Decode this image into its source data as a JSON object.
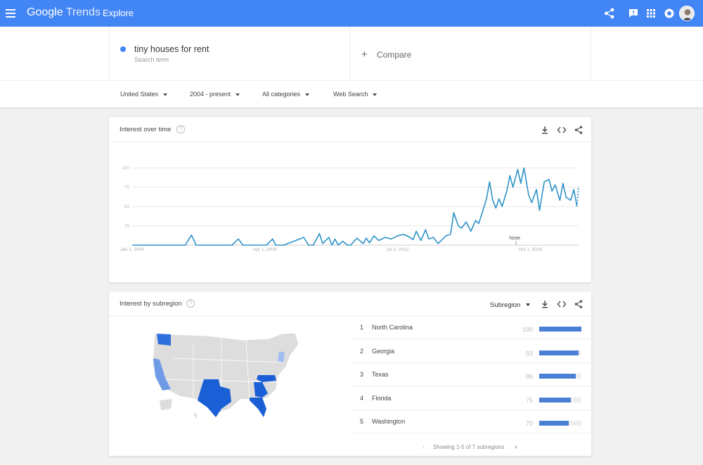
{
  "header": {
    "logo_google": "Google",
    "logo_trends": "Trends",
    "page": "Explore",
    "icons": [
      "menu-icon",
      "share-icon",
      "feedback-icon",
      "apps-icon",
      "notifications-icon",
      "avatar"
    ]
  },
  "search": {
    "term": "tiny houses for rent",
    "term_type": "Search term",
    "term_color": "#4285f4",
    "compare_label": "Compare"
  },
  "filters": {
    "region": "United States",
    "time": "2004 - present",
    "category": "All categories",
    "search_type": "Web Search"
  },
  "interest_over_time": {
    "title": "Interest over time",
    "note_label": "Note"
  },
  "subregion": {
    "title": "Interest by subregion",
    "dropdown": "Subregion",
    "rows": [
      {
        "rank": "1",
        "name": "North Carolina",
        "value": 100
      },
      {
        "rank": "2",
        "name": "Georgia",
        "value": 93
      },
      {
        "rank": "3",
        "name": "Texas",
        "value": 86
      },
      {
        "rank": "4",
        "name": "Florida",
        "value": 75
      },
      {
        "rank": "5",
        "name": "Washington",
        "value": 70
      }
    ],
    "footer": "Showing 1-5 of 7 subregions"
  },
  "chart_data": {
    "type": "line",
    "title": "Interest over time",
    "ylim": [
      0,
      100
    ],
    "yticks": [
      "100",
      "75",
      "50",
      "25"
    ],
    "xticks": [
      "Jan 1, 2004",
      "Apr 1, 2008",
      "Jul 1, 2012",
      "Oct 1, 2016"
    ],
    "xlim": [
      2004.0,
      2018.3
    ],
    "grid": true,
    "color": "#2e93c9",
    "series": [
      {
        "x": [
          2004.0,
          2005.7,
          2005.9,
          2006.05,
          2007.2,
          2007.4,
          2007.55,
          2008.3,
          2008.5,
          2008.6,
          2008.7,
          2008.85,
          2009.5,
          2009.65,
          2009.8,
          2010.0,
          2010.1,
          2010.3,
          2010.4,
          2010.5,
          2010.6,
          2010.75,
          2010.9,
          2011.0,
          2011.2,
          2011.4,
          2011.5,
          2011.6,
          2011.75,
          2011.9,
          2012.1,
          2012.3,
          2012.5,
          2012.7,
          2012.9,
          2013.0,
          2013.1,
          2013.25,
          2013.4,
          2013.5,
          2013.65,
          2013.8,
          2013.95,
          2014.05,
          2014.2,
          2014.3,
          2014.45,
          2014.55,
          2014.7,
          2014.85,
          2015.0,
          2015.1,
          2015.2,
          2015.35,
          2015.45,
          2015.55,
          2015.65,
          2015.75,
          2015.85,
          2016.0,
          2016.1,
          2016.2,
          2016.35,
          2016.45,
          2016.55,
          2016.7,
          2016.8,
          2016.95,
          2017.05,
          2017.2,
          2017.35,
          2017.45,
          2017.55,
          2017.7,
          2017.8,
          2017.9,
          2018.05,
          2018.15,
          2018.25
        ],
        "y": [
          0,
          0,
          13,
          0,
          0,
          8,
          0,
          0,
          8,
          0,
          0,
          0,
          10,
          0,
          0,
          15,
          2,
          10,
          0,
          8,
          0,
          5,
          0,
          0,
          9,
          2,
          9,
          3,
          12,
          6,
          10,
          8,
          12,
          14,
          10,
          7,
          18,
          6,
          20,
          8,
          10,
          2,
          8,
          12,
          14,
          42,
          25,
          22,
          30,
          18,
          32,
          28,
          40,
          60,
          82,
          58,
          48,
          60,
          50,
          70,
          90,
          75,
          98,
          80,
          100,
          65,
          55,
          72,
          45,
          82,
          85,
          70,
          78,
          58,
          80,
          62,
          58,
          72,
          50
        ]
      }
    ],
    "forecast_x": [
      2018.25,
      2018.3
    ],
    "forecast_y": [
      50,
      76
    ],
    "note_x": 2016.3
  }
}
